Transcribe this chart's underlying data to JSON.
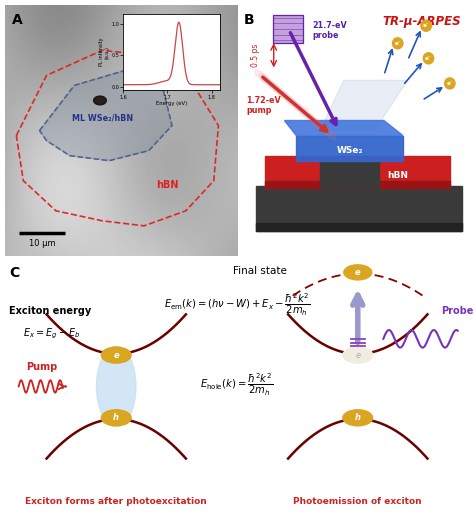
{
  "bg_color": "#ffffff",
  "panel_A_label": "A",
  "panel_B_label": "B",
  "panel_C_label": "C",
  "label_A_text": "ML WSe₂/hBN",
  "label_hBN": "hBN",
  "scale_bar": "10 μm",
  "TR_label": "TR-μ-ARPES",
  "probe_energy": "21.7-eV\nprobe",
  "pump_energy": "1.72-eV\npump",
  "delay": "0.5 ps",
  "WSe2_label": "WSe₂",
  "hBN_label2": "hBN",
  "final_state": "Final state",
  "equation_em": "$E_{\\mathrm{em}}(k) = (h\\nu - W) + E_x - \\dfrac{\\hbar^2 k^2}{2m_h}$",
  "exciton_energy_label": "Exciton energy",
  "exciton_energy_eq": "$E_x = E_g - E_b$",
  "pump_label": "Pump",
  "probe_label": "Probe",
  "hole_eq": "$E_{\\mathrm{hole}}(k) = \\dfrac{\\hbar^2 k^2}{2m_h}$",
  "caption_left": "Exciton forms after photoexcitation",
  "caption_right": "Photoemission of exciton",
  "dark_red": "#6B0000",
  "red": "#CC2222",
  "blue_label": "#4169E1",
  "purple": "#7B2D8B",
  "gold": "#DAA520",
  "light_blue": "#ADD8E6",
  "e_minus_label": "e⁻"
}
